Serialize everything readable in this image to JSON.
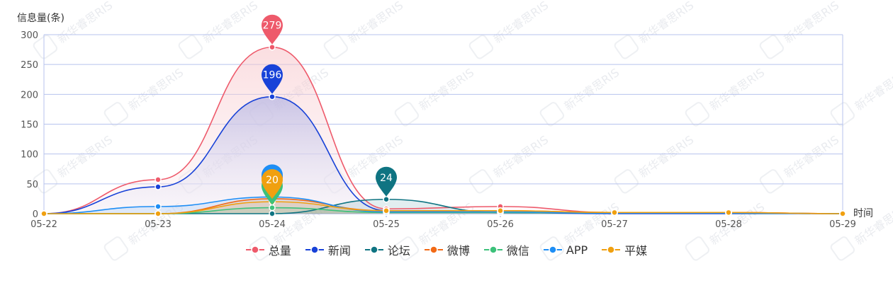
{
  "chart_data": {
    "type": "line",
    "ylabel": "信息量(条)",
    "xlabel": "时间",
    "ylim": [
      0,
      300
    ],
    "yticks": [
      "0",
      "50",
      "100",
      "150",
      "200",
      "250",
      "300"
    ],
    "categories": [
      "05-22",
      "05-23",
      "05-24",
      "05-25",
      "05-26",
      "05-27",
      "05-28",
      "05-29"
    ],
    "grid": true,
    "legend_position": "bottom",
    "watermark": "新华睿思RIS",
    "series": [
      {
        "name": "总量",
        "color": "#ee5a6b",
        "values": [
          0,
          57,
          279,
          8,
          12,
          2,
          2,
          0
        ],
        "max_label": "279",
        "max_index": 2,
        "area": true
      },
      {
        "name": "新闻",
        "color": "#1842d8",
        "values": [
          0,
          45,
          196,
          5,
          2,
          0,
          0,
          0
        ],
        "max_label": "196",
        "max_index": 2,
        "area": true
      },
      {
        "name": "论坛",
        "color": "#0f7482",
        "values": [
          0,
          0,
          0,
          24,
          2,
          1,
          1,
          0
        ],
        "max_label": "24",
        "max_index": 3,
        "area": false
      },
      {
        "name": "微博",
        "color": "#f26a16",
        "values": [
          0,
          0,
          25,
          5,
          5,
          2,
          2,
          0
        ],
        "max_label": "",
        "max_index": 2,
        "area": false
      },
      {
        "name": "微信",
        "color": "#3cc17a",
        "values": [
          0,
          0,
          10,
          2,
          2,
          1,
          1,
          0
        ],
        "max_label": "",
        "max_index": 2,
        "area": false
      },
      {
        "name": "APP",
        "color": "#1e8ef5",
        "values": [
          0,
          12,
          28,
          3,
          3,
          1,
          1,
          0
        ],
        "max_label": "",
        "max_index": 2,
        "area": false
      },
      {
        "name": "平媒",
        "color": "#f0a010",
        "values": [
          0,
          0,
          20,
          5,
          5,
          2,
          2,
          0
        ],
        "max_label": "20",
        "max_index": 2,
        "area": false
      }
    ]
  }
}
